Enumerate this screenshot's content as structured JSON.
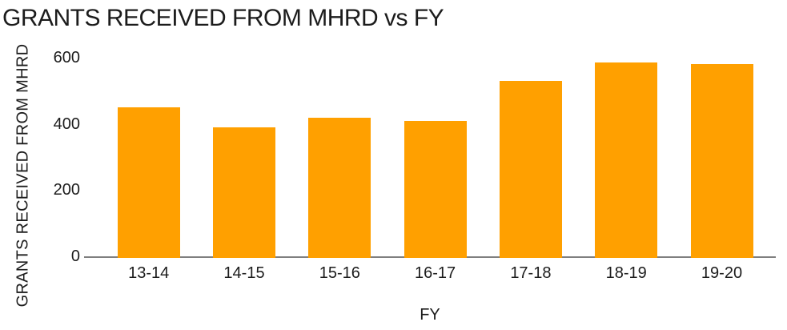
{
  "chart_data": {
    "type": "bar",
    "title": "GRANTS RECEIVED FROM MHRD vs FY",
    "xlabel": "FY",
    "ylabel": "GRANTS RECEIVED FROM MHRD",
    "categories": [
      "13-14",
      "14-15",
      "15-16",
      "16-17",
      "17-18",
      "18-19",
      "19-20"
    ],
    "values": [
      454,
      395,
      423,
      413,
      534,
      590,
      585
    ],
    "yticks": [
      0,
      200,
      400,
      600
    ],
    "ylim": [
      0,
      600
    ],
    "grid": false,
    "legend": false,
    "colors": {
      "bar": "#ffa000",
      "axis_line": "#7f7f7f",
      "text": "#1c1c1c",
      "background": "#ffffff"
    }
  }
}
